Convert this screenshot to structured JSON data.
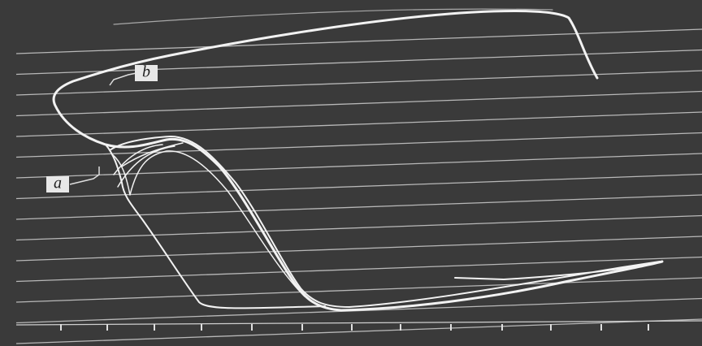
{
  "annotations": [
    {
      "label": "b"
    },
    {
      "label": "a"
    }
  ]
}
